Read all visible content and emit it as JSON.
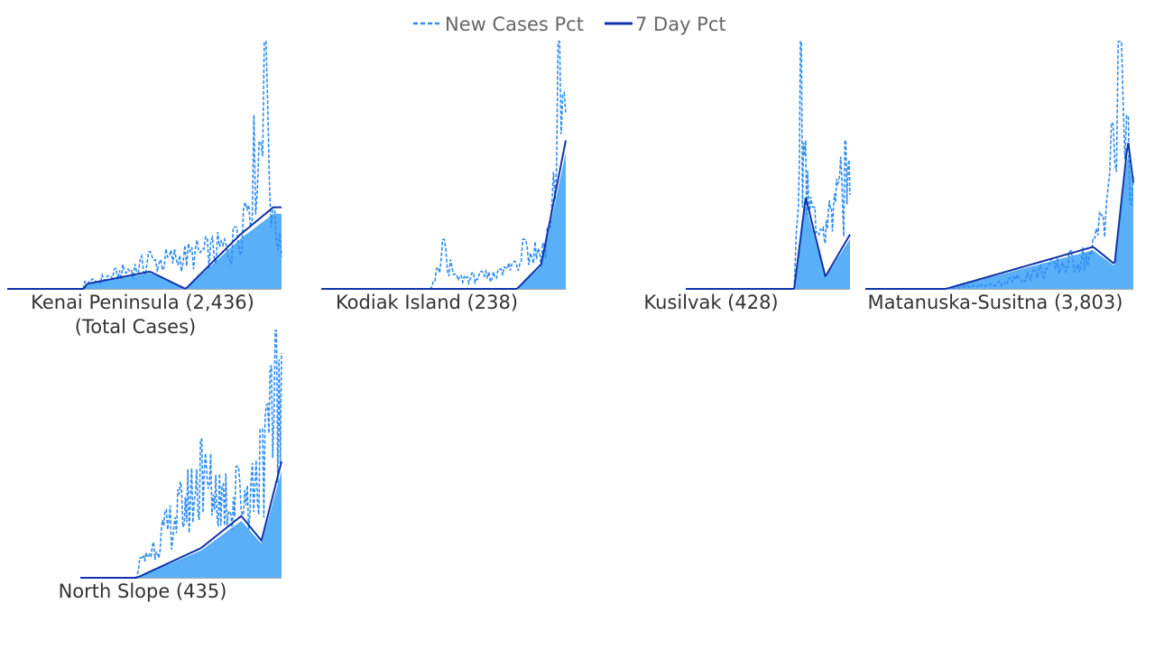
{
  "legend": {
    "new_cases_label": "New Cases Pct",
    "seven_day_label": "7 Day Pct"
  },
  "colors": {
    "area_fill": "#5ab0f8",
    "new_cases_line": "#2f8cf0",
    "seven_day_line": "#0f33a8",
    "label_text": "#333333",
    "legend_text": "#666666"
  },
  "chart_data": [
    {
      "type": "area",
      "title": "Kenai Peninsula (2,436)",
      "subtitle": "(Total Cases)",
      "series": [
        {
          "name": "New Cases Pct",
          "style": "dashed",
          "peaks": [
            [
              0.29,
              0.03
            ],
            [
              0.52,
              0.15
            ],
            [
              0.83,
              0.25
            ],
            [
              0.94,
              1.0
            ],
            [
              0.97,
              0.33
            ]
          ]
        },
        {
          "name": "7 Day Pct",
          "style": "solid",
          "peaks": [
            [
              0.29,
              0.02
            ],
            [
              0.52,
              0.07
            ],
            [
              0.65,
              0.0
            ],
            [
              0.85,
              0.22
            ],
            [
              0.97,
              0.33
            ]
          ]
        }
      ]
    },
    {
      "type": "area",
      "title": "Kodiak Island (238)",
      "series": [
        {
          "name": "New Cases Pct",
          "style": "dashed",
          "peaks": [
            [
              0.5,
              0.2
            ],
            [
              0.55,
              0.06
            ],
            [
              0.73,
              0.08
            ],
            [
              0.83,
              0.2
            ],
            [
              0.93,
              0.25
            ],
            [
              0.97,
              1.0
            ]
          ]
        },
        {
          "name": "7 Day Pct",
          "style": "solid",
          "peaks": [
            [
              0.8,
              0.0
            ],
            [
              0.9,
              0.1
            ],
            [
              1.0,
              0.6
            ]
          ]
        }
      ]
    },
    {
      "type": "area",
      "title": "Kusilvak (428)",
      "series": [
        {
          "name": "New Cases Pct",
          "style": "dashed",
          "peaks": [
            [
              0.7,
              1.0
            ],
            [
              0.78,
              0.33
            ],
            [
              0.82,
              0.24
            ],
            [
              0.97,
              0.6
            ]
          ]
        },
        {
          "name": "7 Day Pct",
          "style": "solid",
          "peaks": [
            [
              0.73,
              0.37
            ],
            [
              0.85,
              0.05
            ],
            [
              1.0,
              0.22
            ]
          ]
        }
      ]
    },
    {
      "type": "area",
      "title": "Matanuska-Susitna (3,803)",
      "series": [
        {
          "name": "New Cases Pct",
          "style": "dashed",
          "peaks": [
            [
              0.5,
              0.03
            ],
            [
              0.85,
              0.2
            ],
            [
              0.95,
              1.0
            ],
            [
              0.98,
              0.7
            ]
          ]
        },
        {
          "name": "7 Day Pct",
          "style": "solid",
          "peaks": [
            [
              0.85,
              0.17
            ],
            [
              0.93,
              0.1
            ],
            [
              0.98,
              0.6
            ],
            [
              1.0,
              0.43
            ]
          ]
        }
      ]
    },
    {
      "type": "area",
      "title": "North Slope (435)",
      "series": [
        {
          "name": "New Cases Pct",
          "style": "dashed",
          "peaks": [
            [
              0.3,
              0.08
            ],
            [
              0.6,
              0.56
            ],
            [
              0.78,
              0.45
            ],
            [
              0.9,
              0.6
            ],
            [
              0.97,
              1.0
            ]
          ]
        },
        {
          "name": "7 Day Pct",
          "style": "solid",
          "peaks": [
            [
              0.6,
              0.12
            ],
            [
              0.8,
              0.25
            ],
            [
              0.9,
              0.15
            ],
            [
              1.0,
              0.47
            ]
          ]
        }
      ]
    }
  ]
}
